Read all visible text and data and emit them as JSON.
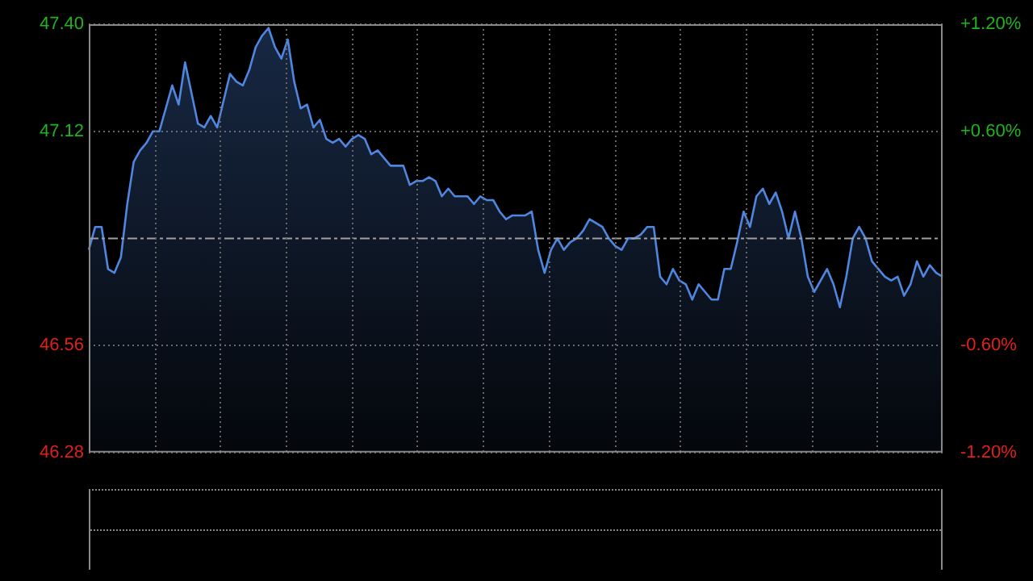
{
  "chart_data": {
    "type": "area",
    "categories": [
      null,
      null,
      null,
      null,
      null,
      null,
      null,
      null,
      null,
      null,
      null,
      null,
      null,
      null,
      null,
      null,
      null,
      null,
      null,
      null,
      null,
      null,
      null,
      null,
      null,
      null,
      null,
      null,
      null,
      null,
      null,
      null,
      null,
      null,
      null,
      null,
      null,
      null,
      null,
      null,
      null,
      null,
      null,
      null,
      null,
      null,
      null,
      null,
      null,
      null,
      null,
      null,
      null,
      null,
      null,
      null,
      null,
      null,
      null,
      null,
      null,
      null,
      null,
      null,
      null,
      null,
      null,
      null,
      null,
      null,
      null,
      null,
      null,
      null,
      null,
      null,
      null,
      null,
      null,
      null,
      null,
      null,
      null,
      null,
      null,
      null,
      null,
      null,
      null,
      null,
      null,
      null,
      null,
      null,
      null,
      null,
      null,
      null,
      null,
      null,
      null,
      null,
      null,
      null,
      null,
      null,
      null,
      null,
      null,
      null,
      null,
      null,
      null,
      null,
      null,
      null,
      null,
      null,
      null,
      null,
      null,
      null,
      null,
      null,
      null,
      null,
      null,
      null,
      null,
      null,
      null,
      null,
      null,
      null
    ],
    "series": [
      {
        "color": "#4f86e0",
        "values": [
          46.81,
          46.87,
          46.87,
          46.76,
          46.75,
          46.79,
          46.93,
          47.04,
          47.07,
          47.09,
          47.12,
          47.12,
          47.18,
          47.24,
          47.19,
          47.3,
          47.22,
          47.14,
          47.13,
          47.16,
          47.13,
          47.2,
          47.27,
          47.25,
          47.24,
          47.28,
          47.34,
          47.37,
          47.39,
          47.34,
          47.31,
          47.36,
          47.25,
          47.18,
          47.19,
          47.13,
          47.15,
          47.1,
          47.09,
          47.1,
          47.08,
          47.1,
          47.11,
          47.1,
          47.06,
          47.07,
          47.05,
          47.03,
          47.03,
          47.03,
          46.98,
          46.99,
          46.99,
          47.0,
          46.99,
          46.95,
          46.97,
          46.95,
          46.95,
          46.95,
          46.93,
          46.95,
          46.94,
          46.94,
          46.91,
          46.89,
          46.9,
          46.9,
          46.9,
          46.91,
          46.81,
          46.75,
          46.81,
          46.84,
          46.81,
          46.83,
          46.84,
          46.86,
          46.89,
          46.88,
          46.87,
          46.84,
          46.82,
          46.81,
          46.84,
          46.84,
          46.85,
          46.87,
          46.87,
          46.74,
          46.72,
          46.76,
          46.73,
          46.72,
          46.68,
          46.72,
          46.7,
          46.68,
          46.68,
          46.76,
          46.76,
          46.83,
          46.91,
          46.87,
          46.95,
          46.97,
          46.93,
          46.96,
          46.91,
          46.84,
          46.91,
          46.84,
          46.74,
          46.7,
          46.73,
          46.76,
          46.72,
          46.66,
          46.74,
          46.84,
          46.87,
          46.84,
          46.78,
          46.76,
          46.74,
          46.73,
          46.74,
          46.69,
          46.72,
          46.78,
          46.74,
          46.77,
          46.75,
          46.74
        ]
      }
    ],
    "ylim": [
      46.28,
      47.4
    ],
    "yticks": [
      {
        "value": 46.28,
        "label": "46.28"
      },
      {
        "value": 46.56,
        "label": "46.56"
      },
      {
        "value": 47.12,
        "label": "47.12"
      },
      {
        "value": 47.4,
        "label": "47.40"
      }
    ],
    "y2lim": [
      -1.2,
      1.2
    ],
    "y2ticks": [
      {
        "value": -1.2,
        "label": "-1.20%"
      },
      {
        "value": -0.6,
        "label": "-0.60%"
      },
      {
        "value": 0.6,
        "label": "+0.60%"
      },
      {
        "value": 1.2,
        "label": "+1.20%"
      }
    ],
    "ref_lines": [
      {
        "axis": "y",
        "value": 46.84,
        "color": "#a0a0a0",
        "line_style": "dashed"
      }
    ],
    "grid": true,
    "legend": false,
    "marker": "none",
    "line_style": "solid",
    "tick_labels": "y"
  }
}
